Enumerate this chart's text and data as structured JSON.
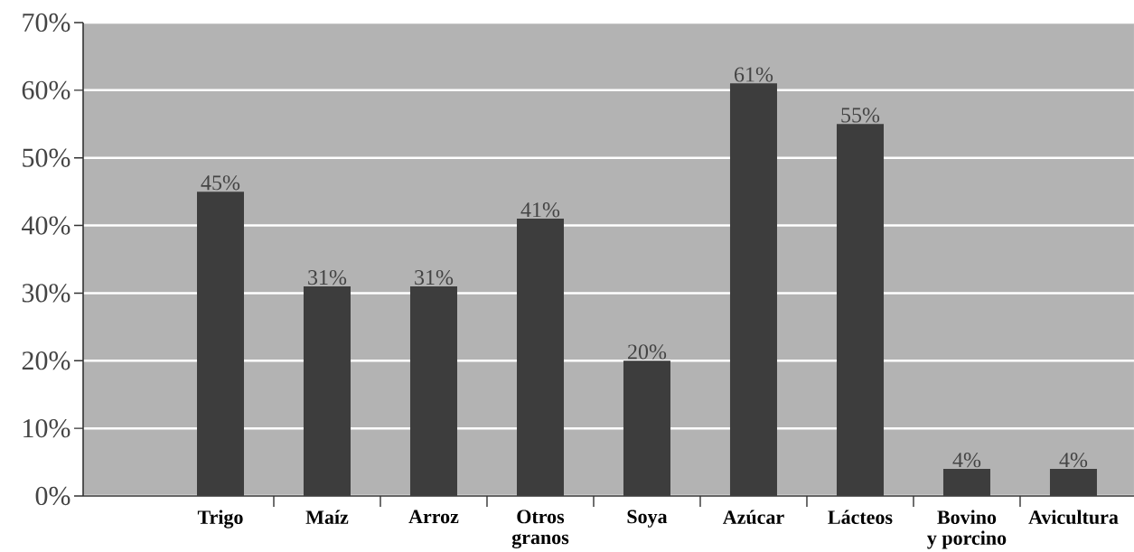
{
  "chart_data": {
    "type": "bar",
    "categories": [
      "Trigo",
      "Maíz",
      "Arroz",
      "Otros granos",
      "Soya",
      "Azúcar",
      "Lácteos",
      "Bovino y porcino",
      "Avicultura"
    ],
    "values": [
      45,
      31,
      31,
      41,
      20,
      61,
      55,
      4,
      4
    ],
    "value_labels": [
      "45%",
      "31%",
      "31%",
      "41%",
      "20%",
      "61%",
      "55%",
      "4%",
      "4%"
    ],
    "color": "#3d3d3d",
    "ylim": [
      0,
      70
    ],
    "yticks": [
      {
        "value": 0,
        "label": "0%"
      },
      {
        "value": 10,
        "label": "10%"
      },
      {
        "value": 20,
        "label": "20%"
      },
      {
        "value": 30,
        "label": "30%"
      },
      {
        "value": 40,
        "label": "40%"
      },
      {
        "value": 50,
        "label": "50%"
      },
      {
        "value": 60,
        "label": "60%"
      },
      {
        "value": 70,
        "label": "70%"
      }
    ],
    "grid": "y"
  }
}
